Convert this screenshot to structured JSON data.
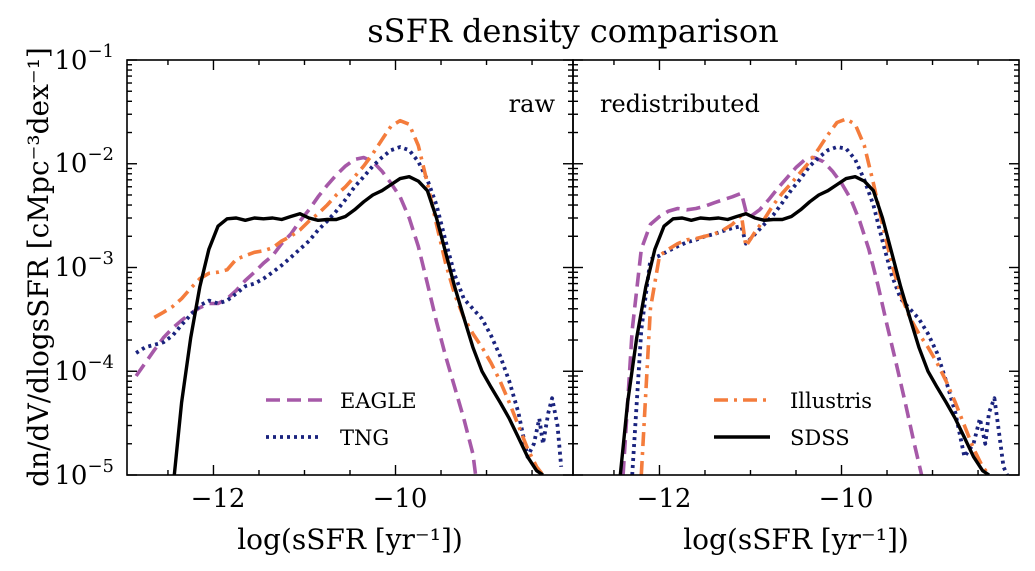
{
  "chart_data": {
    "type": "line",
    "title": "sSFR density comparison",
    "ylabel": "dn/dV/dlogsSFR [cMpc⁻³dex⁻¹]",
    "yscale": "log",
    "ylim": [
      1e-05,
      0.1
    ],
    "yticks": [
      1e-05,
      0.0001,
      0.001,
      0.01,
      0.1
    ],
    "ytick_labels": [
      {
        "base": "10",
        "exp": "−5"
      },
      {
        "base": "10",
        "exp": "−4"
      },
      {
        "base": "10",
        "exp": "−3"
      },
      {
        "base": "10",
        "exp": "−2"
      },
      {
        "base": "10",
        "exp": "−1"
      }
    ],
    "colors": {
      "EAGLE": "#a659a8",
      "TNG": "#1a237e",
      "Illustris": "#f47c3c",
      "SDSS": "#000000"
    },
    "panels": [
      {
        "label": "raw",
        "xlabel": "log(sSFR [yr⁻¹])",
        "xlim": [
          -12.95,
          -8.05
        ],
        "xticks": [
          -12,
          -10
        ],
        "xtick_labels": [
          "−12",
          "−10"
        ],
        "series": [
          {
            "name": "EAGLE",
            "style": "dashed",
            "x": [
              -12.85,
              -12.75,
              -12.65,
              -12.55,
              -12.45,
              -12.35,
              -12.25,
              -12.15,
              -12.05,
              -11.95,
              -11.85,
              -11.75,
              -11.65,
              -11.55,
              -11.45,
              -11.35,
              -11.25,
              -11.15,
              -11.05,
              -10.95,
              -10.85,
              -10.75,
              -10.65,
              -10.55,
              -10.45,
              -10.35,
              -10.25,
              -10.15,
              -10.05,
              -9.95,
              -9.85,
              -9.75,
              -9.65,
              -9.55,
              -9.45,
              -9.35,
              -9.25,
              -9.15,
              -9.12
            ],
            "y": [
              9e-05,
              0.00012,
              0.00016,
              0.00021,
              0.00026,
              0.00031,
              0.00036,
              0.00041,
              0.00045,
              0.00045,
              0.0005,
              0.0006,
              0.00075,
              0.0009,
              0.0011,
              0.0013,
              0.0017,
              0.0021,
              0.0028,
              0.0036,
              0.0048,
              0.0062,
              0.0078,
              0.0095,
              0.011,
              0.0115,
              0.0105,
              0.0085,
              0.0065,
              0.0048,
              0.003,
              0.0016,
              0.0007,
              0.0003,
              0.00014,
              7e-05,
              3.5e-05,
              1.6e-05,
              1e-05
            ]
          },
          {
            "name": "TNG",
            "style": "dotted",
            "x": [
              -12.85,
              -12.75,
              -12.65,
              -12.55,
              -12.45,
              -12.35,
              -12.25,
              -12.15,
              -12.05,
              -11.95,
              -11.85,
              -11.75,
              -11.65,
              -11.55,
              -11.45,
              -11.35,
              -11.25,
              -11.15,
              -11.05,
              -10.95,
              -10.85,
              -10.75,
              -10.65,
              -10.55,
              -10.45,
              -10.35,
              -10.25,
              -10.15,
              -10.05,
              -9.95,
              -9.85,
              -9.75,
              -9.65,
              -9.55,
              -9.45,
              -9.35,
              -9.25,
              -9.15,
              -9.05,
              -8.95,
              -8.85,
              -8.75,
              -8.65,
              -8.55,
              -8.48,
              -8.42,
              -8.38,
              -8.32,
              -8.28,
              -8.22,
              -8.18
            ],
            "y": [
              0.00015,
              0.00017,
              0.00018,
              0.00019,
              0.00022,
              0.00028,
              0.00035,
              0.00043,
              0.00048,
              0.00045,
              0.00048,
              0.00056,
              0.00066,
              0.0007,
              0.00078,
              0.0009,
              0.00105,
              0.00125,
              0.0015,
              0.0018,
              0.0023,
              0.0028,
              0.0035,
              0.0045,
              0.006,
              0.0075,
              0.0095,
              0.0115,
              0.0135,
              0.0145,
              0.0135,
              0.0105,
              0.007,
              0.004,
              0.0018,
              0.00085,
              0.0005,
              0.0004,
              0.00032,
              0.00022,
              0.00014,
              8e-05,
              4e-05,
              1.5e-05,
              2e-05,
              3.5e-05,
              2e-05,
              4e-05,
              5.5e-05,
              3e-05,
              1.2e-05
            ]
          },
          {
            "name": "Illustris",
            "style": "dashdot",
            "x": [
              -12.65,
              -12.55,
              -12.45,
              -12.35,
              -12.25,
              -12.15,
              -12.05,
              -11.95,
              -11.85,
              -11.75,
              -11.65,
              -11.55,
              -11.45,
              -11.35,
              -11.25,
              -11.15,
              -11.05,
              -10.95,
              -10.85,
              -10.75,
              -10.65,
              -10.55,
              -10.45,
              -10.35,
              -10.25,
              -10.15,
              -10.05,
              -9.95,
              -9.85,
              -9.75,
              -9.65,
              -9.55,
              -9.45,
              -9.35,
              -9.25,
              -9.15,
              -9.05,
              -8.95,
              -8.85,
              -8.75,
              -8.65,
              -8.55,
              -8.45,
              -8.38
            ],
            "y": [
              0.00033,
              0.00037,
              0.00042,
              0.0005,
              0.00063,
              0.00078,
              0.00088,
              0.0009,
              0.00095,
              0.0012,
              0.0013,
              0.0014,
              0.00145,
              0.00155,
              0.0018,
              0.002,
              0.0023,
              0.0028,
              0.0033,
              0.004,
              0.005,
              0.006,
              0.0075,
              0.0095,
              0.0125,
              0.017,
              0.023,
              0.026,
              0.024,
              0.015,
              0.0065,
              0.0026,
              0.0011,
              0.00055,
              0.00033,
              0.00023,
              0.00017,
              0.00012,
              8e-05,
              5e-05,
              3e-05,
              1.8e-05,
              1.2e-05,
              1e-05
            ]
          },
          {
            "name": "SDSS",
            "style": "solid",
            "x": [
              -12.43,
              -12.35,
              -12.25,
              -12.15,
              -12.05,
              -11.95,
              -11.85,
              -11.75,
              -11.65,
              -11.55,
              -11.45,
              -11.35,
              -11.25,
              -11.15,
              -11.05,
              -10.95,
              -10.85,
              -10.75,
              -10.65,
              -10.55,
              -10.45,
              -10.35,
              -10.25,
              -10.15,
              -10.05,
              -9.95,
              -9.85,
              -9.75,
              -9.65,
              -9.55,
              -9.45,
              -9.35,
              -9.25,
              -9.15,
              -9.05,
              -8.95,
              -8.85,
              -8.75,
              -8.65,
              -8.55,
              -8.45,
              -8.38
            ],
            "y": [
              1e-05,
              5e-05,
              0.00021,
              0.00065,
              0.0015,
              0.0025,
              0.00295,
              0.003,
              0.00285,
              0.003,
              0.00295,
              0.003,
              0.0029,
              0.0031,
              0.0033,
              0.003,
              0.00285,
              0.0029,
              0.0029,
              0.0031,
              0.0036,
              0.0043,
              0.005,
              0.0055,
              0.0063,
              0.0072,
              0.0075,
              0.0068,
              0.0055,
              0.003,
              0.0014,
              0.00065,
              0.00033,
              0.00017,
              0.0001,
              7e-05,
              5e-05,
              3.5e-05,
              2.3e-05,
              1.5e-05,
              1.1e-05,
              1e-05
            ]
          }
        ]
      },
      {
        "label": "redistributed",
        "xlabel": "log(sSFR [yr⁻¹])",
        "xlim": [
          -12.95,
          -8.05
        ],
        "xticks": [
          -12,
          -10
        ],
        "xtick_labels": [
          "−12",
          "−10"
        ],
        "series": [
          {
            "name": "EAGLE",
            "style": "dashed",
            "x": [
              -12.4,
              -12.3,
              -12.2,
              -12.1,
              -12.0,
              -11.9,
              -11.8,
              -11.7,
              -11.6,
              -11.5,
              -11.4,
              -11.3,
              -11.2,
              -11.1,
              -11.05,
              -11.0,
              -10.9,
              -10.8,
              -10.7,
              -10.6,
              -10.5,
              -10.4,
              -10.3,
              -10.2,
              -10.1,
              -10.0,
              -9.9,
              -9.8,
              -9.7,
              -9.6,
              -9.5,
              -9.4,
              -9.3,
              -9.2,
              -9.12
            ],
            "y": [
              1e-05,
              0.00025,
              0.0015,
              0.0026,
              0.0031,
              0.0035,
              0.0037,
              0.0036,
              0.0037,
              0.0039,
              0.0042,
              0.0045,
              0.0048,
              0.0052,
              0.0035,
              0.0031,
              0.0036,
              0.0045,
              0.0058,
              0.0073,
              0.0092,
              0.011,
              0.0115,
              0.0105,
              0.0085,
              0.0065,
              0.0046,
              0.0028,
              0.0015,
              0.00068,
              0.00028,
              0.00012,
              5e-05,
              2e-05,
              1e-05
            ]
          },
          {
            "name": "TNG",
            "style": "dotted",
            "x": [
              -12.3,
              -12.2,
              -12.1,
              -12.0,
              -11.9,
              -11.8,
              -11.7,
              -11.6,
              -11.5,
              -11.4,
              -11.3,
              -11.2,
              -11.1,
              -11.05,
              -10.95,
              -10.85,
              -10.75,
              -10.65,
              -10.55,
              -10.45,
              -10.35,
              -10.25,
              -10.15,
              -10.05,
              -9.95,
              -9.85,
              -9.75,
              -9.65,
              -9.55,
              -9.45,
              -9.35,
              -9.25,
              -9.15,
              -9.05,
              -8.95,
              -8.85,
              -8.75,
              -8.65,
              -8.55,
              -8.48,
              -8.42,
              -8.38,
              -8.32,
              -8.28,
              -8.22,
              -8.18
            ],
            "y": [
              1e-05,
              0.00025,
              0.0012,
              0.0013,
              0.00145,
              0.0016,
              0.00175,
              0.00185,
              0.002,
              0.0021,
              0.00225,
              0.0024,
              0.0025,
              0.0017,
              0.0021,
              0.0026,
              0.0032,
              0.0042,
              0.0056,
              0.0072,
              0.0095,
              0.0115,
              0.0135,
              0.0145,
              0.014,
              0.011,
              0.007,
              0.004,
              0.0018,
              0.00085,
              0.0005,
              0.0004,
              0.00032,
              0.00023,
              0.00015,
              8e-05,
              4e-05,
              1.5e-05,
              2e-05,
              3.5e-05,
              2e-05,
              4e-05,
              5.5e-05,
              3e-05,
              1.2e-05,
              1e-05
            ]
          },
          {
            "name": "Illustris",
            "style": "dashdot",
            "x": [
              -12.2,
              -12.1,
              -12.0,
              -11.9,
              -11.8,
              -11.7,
              -11.6,
              -11.5,
              -11.4,
              -11.3,
              -11.2,
              -11.1,
              -11.05,
              -10.95,
              -10.85,
              -10.75,
              -10.65,
              -10.55,
              -10.45,
              -10.35,
              -10.25,
              -10.15,
              -10.05,
              -9.95,
              -9.85,
              -9.75,
              -9.65,
              -9.55,
              -9.45,
              -9.35,
              -9.25,
              -9.15,
              -9.05,
              -8.95,
              -8.85,
              -8.75,
              -8.65,
              -8.55,
              -8.45,
              -8.38
            ],
            "y": [
              1e-05,
              0.0004,
              0.0013,
              0.0015,
              0.0017,
              0.00185,
              0.0019,
              0.002,
              0.0021,
              0.0023,
              0.0026,
              0.0032,
              0.0016,
              0.0022,
              0.0029,
              0.004,
              0.0052,
              0.0065,
              0.0083,
              0.0105,
              0.014,
              0.019,
              0.025,
              0.027,
              0.024,
              0.015,
              0.0065,
              0.0026,
              0.0011,
              0.00055,
              0.00033,
              0.00023,
              0.00017,
              0.00012,
              8e-05,
              5e-05,
              3e-05,
              1.8e-05,
              1.2e-05,
              1e-05
            ]
          },
          {
            "name": "SDSS",
            "style": "solid",
            "x": [
              -12.43,
              -12.35,
              -12.25,
              -12.15,
              -12.05,
              -11.95,
              -11.85,
              -11.75,
              -11.65,
              -11.55,
              -11.45,
              -11.35,
              -11.25,
              -11.15,
              -11.05,
              -10.95,
              -10.85,
              -10.75,
              -10.65,
              -10.55,
              -10.45,
              -10.35,
              -10.25,
              -10.15,
              -10.05,
              -9.95,
              -9.85,
              -9.75,
              -9.65,
              -9.55,
              -9.45,
              -9.35,
              -9.25,
              -9.15,
              -9.05,
              -8.95,
              -8.85,
              -8.75,
              -8.65,
              -8.55,
              -8.45,
              -8.38
            ],
            "y": [
              1e-05,
              5e-05,
              0.00021,
              0.00065,
              0.0015,
              0.0025,
              0.00295,
              0.003,
              0.00285,
              0.003,
              0.00295,
              0.003,
              0.0029,
              0.0031,
              0.0033,
              0.003,
              0.00285,
              0.0029,
              0.0029,
              0.0031,
              0.0036,
              0.0043,
              0.005,
              0.0055,
              0.0063,
              0.0072,
              0.0075,
              0.0068,
              0.0055,
              0.003,
              0.0014,
              0.00065,
              0.00033,
              0.00017,
              0.0001,
              7e-05,
              5e-05,
              3.5e-05,
              2.3e-05,
              1.5e-05,
              1.1e-05,
              1e-05
            ]
          }
        ]
      }
    ],
    "legends": [
      {
        "panel": 0,
        "location": "lower-right",
        "entries": [
          {
            "name": "EAGLE",
            "style": "dashed"
          },
          {
            "name": "TNG",
            "style": "dotted"
          }
        ]
      },
      {
        "panel": 1,
        "location": "lower-right",
        "entries": [
          {
            "name": "Illustris",
            "style": "dashdot"
          },
          {
            "name": "SDSS",
            "style": "solid"
          }
        ]
      }
    ]
  }
}
